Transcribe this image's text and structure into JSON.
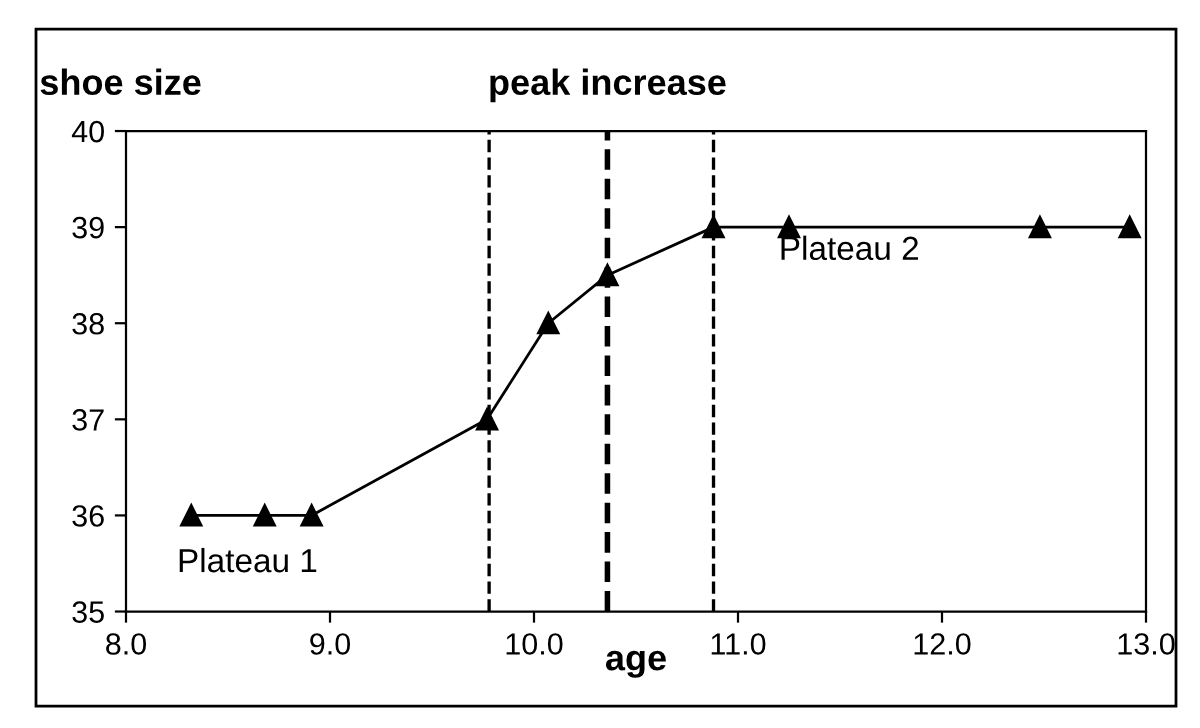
{
  "chart_data": {
    "type": "line",
    "xlabel": "age",
    "ylabel": "shoe size",
    "x": [
      8.32,
      8.68,
      8.91,
      9.77,
      10.07,
      10.36,
      10.88,
      11.25,
      12.48,
      12.92
    ],
    "series": [
      {
        "color": "#000000",
        "values": [
          36,
          36,
          36,
          37,
          38,
          38.5,
          39,
          39,
          39,
          39
        ]
      }
    ],
    "marker": "triangle",
    "line_style": "solid",
    "grid": false,
    "legend": false,
    "xlim": [
      8.0,
      13.0
    ],
    "xticks": [
      {
        "value": 8,
        "label": "8.0"
      },
      {
        "value": 9,
        "label": "9.0"
      },
      {
        "value": 10,
        "label": "10.0"
      },
      {
        "value": 11,
        "label": "11.0"
      },
      {
        "value": 12,
        "label": "12.0"
      },
      {
        "value": 13,
        "label": "13.0"
      }
    ],
    "ylim": [
      35,
      40
    ],
    "yticks": [
      35,
      36,
      37,
      38,
      39,
      40
    ],
    "ref_lines": [
      {
        "axis": "x",
        "value": 9.78,
        "line_style": "dashed"
      },
      {
        "axis": "x",
        "value": 10.36,
        "label": "peak increase",
        "line_style": "dashed"
      },
      {
        "axis": "x",
        "value": 10.88,
        "line_style": "dashed"
      }
    ],
    "annotations": [
      "Plateau 1",
      "Plateau 2"
    ]
  }
}
